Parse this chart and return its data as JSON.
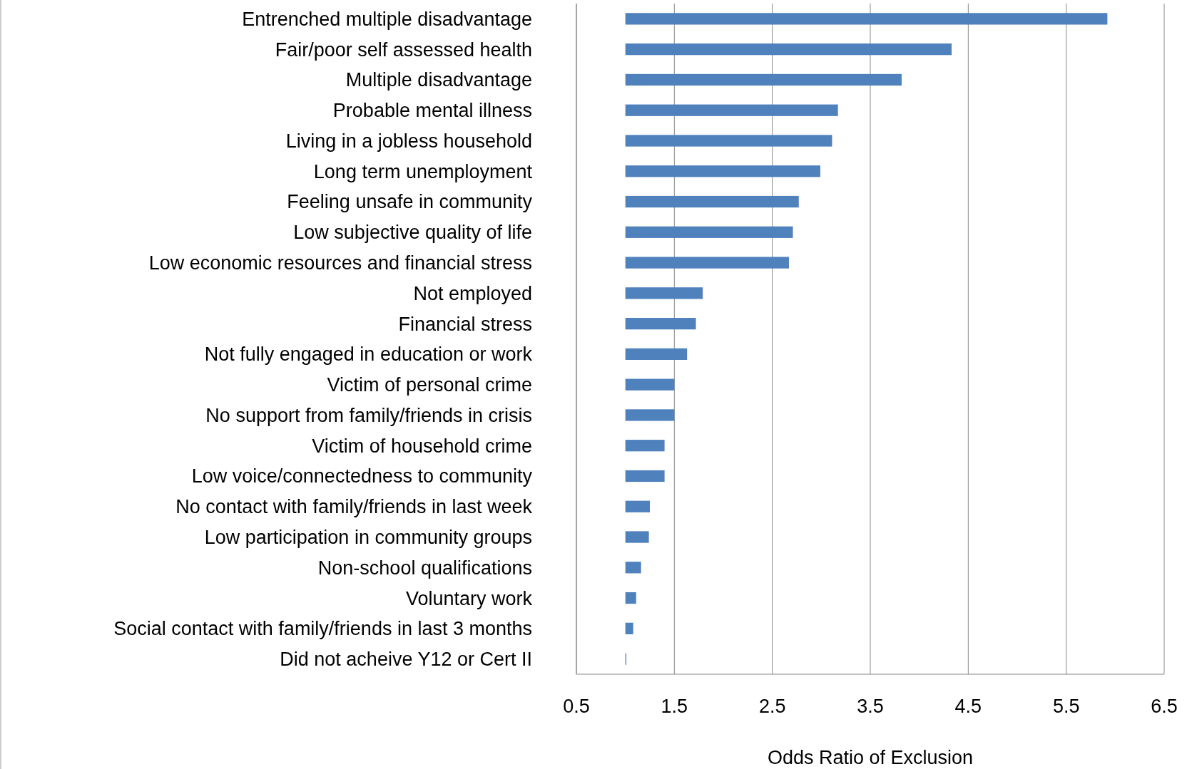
{
  "chart_data": {
    "type": "bar",
    "orientation": "horizontal",
    "xlabel": "Odds Ratio of Exclusion",
    "categories": [
      "Entrenched multiple disadvantage",
      "Fair/poor self assessed health",
      "Multiple disadvantage",
      "Probable mental illness",
      "Living in a jobless household",
      "Long term unemployment",
      "Feeling unsafe in community",
      "Low subjective quality of life",
      "Low economic resources and financial stress",
      "Not employed",
      "Financial stress",
      "Not fully engaged in education or work",
      "Victim of personal crime",
      "No support from family/friends in crisis",
      "Victim of household crime",
      "Low voice/connectedness to community",
      "No contact with family/friends in last week",
      "Low participation in community groups",
      "Non-school qualifications",
      "Voluntary work",
      "Social contact with family/friends in last 3 months",
      "Did not acheive Y12 or Cert II"
    ],
    "base": [
      1,
      1,
      1,
      1,
      1,
      1,
      1,
      1,
      1,
      1,
      1,
      1,
      1,
      1,
      1,
      1,
      1,
      1,
      1,
      1,
      1,
      1
    ],
    "values": [
      4.92,
      3.33,
      2.82,
      2.17,
      2.11,
      1.99,
      1.77,
      1.71,
      1.67,
      0.79,
      0.72,
      0.63,
      0.5,
      0.5,
      0.4,
      0.4,
      0.25,
      0.24,
      0.16,
      0.11,
      0.08,
      0.01
    ],
    "color": "#4f81bd",
    "xlim": [
      0.5,
      6.5
    ],
    "xticks": [
      0.5,
      1.5,
      2.5,
      3.5,
      4.5,
      5.5,
      6.5
    ],
    "grid": "x"
  }
}
